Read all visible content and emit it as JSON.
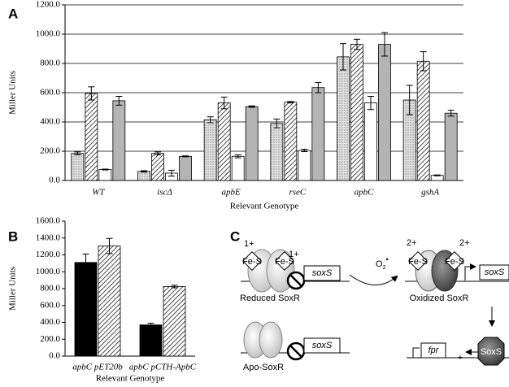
{
  "chart_data": [
    {
      "type": "bar",
      "panel": "A",
      "ylabel": "Miller Units",
      "xlabel": "Relevant Genotype",
      "categories": [
        "WT",
        "iscΔ",
        "apbE",
        "rseC",
        "apbC",
        "gshA"
      ],
      "series": [
        {
          "color": "#d4d4d4",
          "pattern": "dots",
          "values": [
            185,
            62,
            415,
            390,
            845,
            550
          ],
          "errors": [
            10,
            5,
            20,
            30,
            90,
            100
          ]
        },
        {
          "color": "#ffffff",
          "pattern": "hatch",
          "values": [
            595,
            185,
            530,
            535,
            930,
            815
          ],
          "errors": [
            45,
            10,
            40,
            5,
            35,
            65
          ]
        },
        {
          "color": "#ffffff",
          "values": [
            75,
            50,
            165,
            205,
            530,
            35
          ],
          "errors": [
            3,
            20,
            10,
            8,
            45,
            3
          ]
        },
        {
          "color": "#b4b4b4",
          "values": [
            545,
            165,
            505,
            635,
            930,
            460
          ],
          "errors": [
            30,
            3,
            5,
            35,
            80,
            20
          ]
        }
      ],
      "ylim": [
        0,
        1200
      ],
      "yticks": [
        {
          "value": 0,
          "label": "0.0"
        },
        {
          "value": 200,
          "label": "200.0"
        },
        {
          "value": 400,
          "label": "400.0"
        },
        {
          "value": 600,
          "label": "600.0"
        },
        {
          "value": 800,
          "label": "800.0"
        },
        {
          "value": 1000,
          "label": "1000.0"
        },
        {
          "value": 1200,
          "label": "1200.0"
        }
      ],
      "grid": true
    },
    {
      "type": "bar",
      "panel": "B",
      "ylabel": "Miller Units",
      "xlabel": "Relevant Genotype",
      "categories": [
        "apbC pET20b",
        "apbC pCTH-ApbC"
      ],
      "series": [
        {
          "color": "#000000",
          "values": [
            1110,
            370
          ],
          "errors": [
            100,
            20
          ]
        },
        {
          "color": "#ffffff",
          "pattern": "hatch",
          "values": [
            1305,
            825
          ],
          "errors": [
            90,
            15
          ]
        }
      ],
      "ylim": [
        0,
        1600
      ],
      "yticks": [
        {
          "value": 0,
          "label": "0.0"
        },
        {
          "value": 200,
          "label": "200.0"
        },
        {
          "value": 400,
          "label": "400.0"
        },
        {
          "value": 600,
          "label": "600.0"
        },
        {
          "value": 800,
          "label": "800.0"
        },
        {
          "value": 1000,
          "label": "1000.0"
        },
        {
          "value": 1200,
          "label": "1200.0"
        },
        {
          "value": 1400,
          "label": "1400.0"
        },
        {
          "value": 1600,
          "label": "1600.0"
        }
      ],
      "grid": false
    }
  ],
  "diagram": {
    "panel": "C",
    "reduced": {
      "charges": [
        "1+",
        "1+"
      ],
      "clusters": [
        "Fe-S",
        "Fe-S"
      ],
      "gene": "soxS",
      "label": "Reduced SoxR"
    },
    "oxidant": {
      "text": "O",
      "sub": "2",
      "sup": "•"
    },
    "oxidized": {
      "charges": [
        "2+",
        "2+"
      ],
      "clusters": [
        "Fe-S",
        "Fe-S"
      ],
      "gene": "soxS",
      "label": "Oxidized SoxR"
    },
    "apo": {
      "gene": "soxS",
      "label": "Apo-SoxR"
    },
    "target": {
      "gene": "fpr",
      "sign": "+",
      "protein": "SoxS"
    }
  }
}
